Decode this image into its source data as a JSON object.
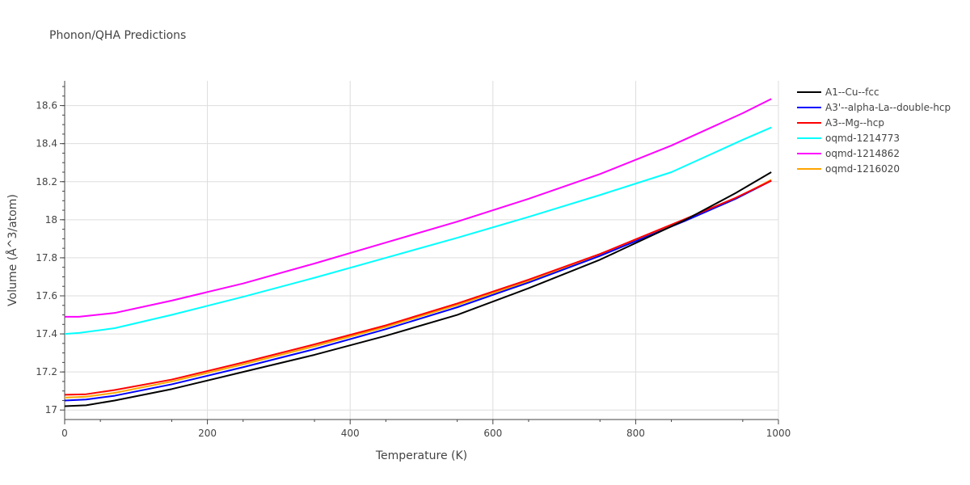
{
  "chart_data": {
    "type": "line",
    "title": "Phonon/QHA Predictions",
    "xlabel": "Temperature (K)",
    "ylabel": "Volume (Å^3/atom)",
    "xlim": [
      0,
      1000
    ],
    "ylim": [
      16.95,
      18.73
    ],
    "xticks": [
      0,
      200,
      400,
      600,
      800,
      1000
    ],
    "yticks": [
      17,
      17.2,
      17.4,
      17.6,
      17.8,
      18,
      18.2,
      18.4,
      18.6
    ],
    "xtick_labels": [
      "0",
      "200",
      "400",
      "600",
      "800",
      "1000"
    ],
    "ytick_labels": [
      "17",
      "17.2",
      "17.4",
      "17.6",
      "17.8",
      "18",
      "18.2",
      "18.4",
      "18.6"
    ],
    "grid": true,
    "legend_position": "right",
    "series": [
      {
        "name": "A1--Cu--fcc",
        "color": "#000000",
        "x": [
          0,
          30,
          70,
          150,
          250,
          350,
          450,
          550,
          650,
          750,
          870,
          940,
          990
        ],
        "y": [
          17.02,
          17.025,
          17.05,
          17.11,
          17.2,
          17.29,
          17.39,
          17.5,
          17.64,
          17.79,
          18.0,
          18.14,
          18.25
        ]
      },
      {
        "name": "A3'--alpha-La--double-hcp",
        "color": "#0000ff",
        "x": [
          0,
          30,
          70,
          150,
          250,
          350,
          450,
          550,
          650,
          750,
          870,
          940,
          990
        ],
        "y": [
          17.05,
          17.055,
          17.075,
          17.135,
          17.225,
          17.32,
          17.425,
          17.54,
          17.67,
          17.81,
          17.995,
          18.11,
          18.205
        ]
      },
      {
        "name": "A3--Mg--hcp",
        "color": "#ff0000",
        "x": [
          0,
          30,
          70,
          150,
          250,
          350,
          450,
          550,
          650,
          750,
          870,
          940,
          990
        ],
        "y": [
          17.08,
          17.083,
          17.105,
          17.16,
          17.25,
          17.345,
          17.445,
          17.56,
          17.685,
          17.82,
          18.005,
          18.115,
          18.205
        ]
      },
      {
        "name": "oqmd-1214773",
        "color": "#00ffff",
        "x": [
          0,
          20,
          70,
          150,
          250,
          350,
          450,
          550,
          650,
          750,
          850,
          950,
          990
        ],
        "y": [
          17.4,
          17.405,
          17.43,
          17.5,
          17.595,
          17.695,
          17.8,
          17.905,
          18.015,
          18.13,
          18.25,
          18.42,
          18.485
        ]
      },
      {
        "name": "oqmd-1214862",
        "color": "#ff00ff",
        "x": [
          0,
          20,
          70,
          150,
          250,
          350,
          450,
          550,
          650,
          750,
          850,
          950,
          990
        ],
        "y": [
          17.49,
          17.49,
          17.51,
          17.575,
          17.665,
          17.77,
          17.88,
          17.99,
          18.11,
          18.24,
          18.39,
          18.56,
          18.635
        ]
      },
      {
        "name": "oqmd-1216020",
        "color": "#ffa500",
        "x": [
          0,
          30,
          70,
          150,
          250,
          350,
          450,
          550,
          650,
          750,
          870,
          940,
          990
        ],
        "y": [
          17.065,
          17.07,
          17.09,
          17.15,
          17.24,
          17.335,
          17.437,
          17.552,
          17.678,
          17.815,
          17.995,
          18.11,
          18.21
        ]
      }
    ]
  }
}
